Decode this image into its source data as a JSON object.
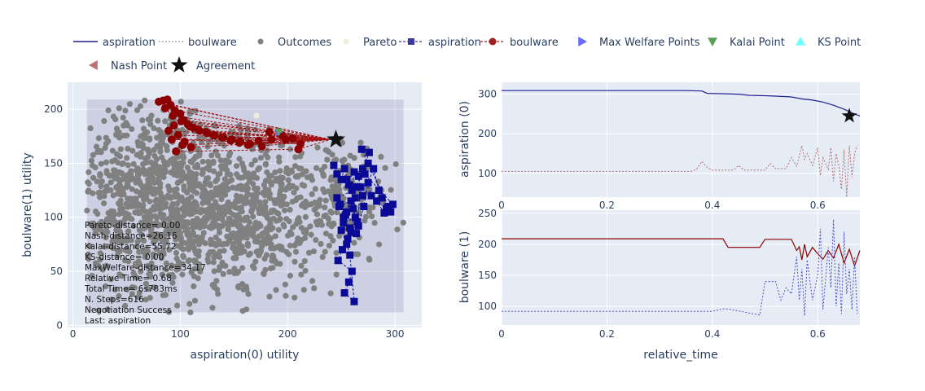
{
  "legend": [
    {
      "label": "aspiration",
      "kind": "solid-line",
      "color": "#1f1f8f"
    },
    {
      "label": "boulware",
      "kind": "dotted-line",
      "color": "#999999"
    },
    {
      "label": "Outcomes",
      "kind": "dot",
      "color": "#808080"
    },
    {
      "label": "Pareto",
      "kind": "dot",
      "color": "#f0f0d8"
    },
    {
      "label": "aspiration",
      "kind": "square-dash",
      "color": "#3a3aa0"
    },
    {
      "label": "boulware",
      "kind": "circle-dash",
      "color": "#a02020"
    },
    {
      "label": "Max Welfare Points",
      "kind": "triangle-right",
      "color": "#6a6aff"
    },
    {
      "label": "Kalai Point",
      "kind": "triangle-down",
      "color": "#5aa05a"
    },
    {
      "label": "KS Point",
      "kind": "triangle-up",
      "color": "#70ffff"
    },
    {
      "label": "Nash Point",
      "kind": "triangle-left",
      "color": "#c07070"
    },
    {
      "label": "Agreement",
      "kind": "star",
      "color": "#111111"
    }
  ],
  "annotations": [
    "Pareto-distance= 0.00",
    "Nash-distance=26.16",
    "Kalai-distance=55.72",
    "KS-distance= 0.00",
    "MaxWelfare-distance=34.17",
    "Relative Time= 0.68",
    "Total Time= 6s783ms",
    "N. Steps=616",
    "Negotiation Success",
    "Last: aspiration"
  ],
  "chart_data": [
    {
      "type": "scatter",
      "xlabel": "aspiration(0) utility",
      "ylabel": "boulware(1) utility",
      "xlim": [
        -5,
        325
      ],
      "ylim": [
        -2,
        225
      ],
      "x_ticks": [
        0,
        100,
        200,
        300
      ],
      "y_ticks": [
        0,
        50,
        100,
        150,
        200
      ],
      "outcome_region": {
        "x": [
          13,
          308
        ],
        "y": [
          12,
          209
        ]
      },
      "outcome_clusters": [
        {
          "cx": 80,
          "cy": 120,
          "sx": 45,
          "sy": 45,
          "n": 1050
        },
        {
          "cx": 170,
          "cy": 105,
          "sx": 38,
          "sy": 35,
          "n": 550
        },
        {
          "cx": 255,
          "cy": 120,
          "sx": 18,
          "sy": 25,
          "n": 140
        }
      ],
      "pareto": [
        {
          "x": 243,
          "y": 173
        },
        {
          "x": 192,
          "y": 179
        },
        {
          "x": 171,
          "y": 194
        }
      ],
      "aspiration_offers": {
        "x": [
          243,
          246,
          250,
          253,
          257,
          260,
          262,
          266,
          270,
          248,
          255,
          259,
          263,
          252,
          258,
          264,
          268,
          246,
          249,
          254,
          261,
          265,
          256,
          251,
          247,
          260,
          257,
          253,
          262,
          258,
          255,
          250,
          266,
          271,
          275,
          280,
          285,
          288,
          292,
          296,
          298,
          272,
          278,
          283,
          290,
          294,
          269,
          276,
          264,
          252,
          259,
          263,
          255,
          270,
          275
        ],
        "y": [
          148,
          140,
          135,
          145,
          130,
          125,
          142,
          138,
          120,
          110,
          105,
          115,
          100,
          95,
          90,
          85,
          128,
          118,
          112,
          102,
          108,
          96,
          80,
          70,
          60,
          50,
          40,
          30,
          22,
          65,
          75,
          88,
          92,
          110,
          132,
          145,
          125,
          118,
          108,
          105,
          112,
          140,
          120,
          115,
          104,
          110,
          163,
          160,
          128,
          100,
          86,
          118,
          135,
          145,
          150
        ]
      },
      "boulware_offers": {
        "x": [
          84,
          88,
          91,
          95,
          100,
          103,
          107,
          112,
          118,
          125,
          132,
          140,
          148,
          156,
          165,
          176,
          185,
          195,
          205,
          212,
          92,
          98,
          104,
          110,
          80,
          86,
          93,
          101,
          109,
          117,
          124,
          131,
          139,
          147,
          155,
          163,
          173,
          183,
          198,
          210,
          96,
          102,
          89,
          94
        ],
        "y": [
          208,
          209,
          204,
          199,
          196,
          190,
          186,
          183,
          180,
          178,
          176,
          174,
          172,
          170,
          168,
          166,
          172,
          176,
          173,
          168,
          172,
          176,
          170,
          165,
          207,
          201,
          194,
          189,
          184,
          181,
          179,
          176,
          174,
          171,
          169,
          167,
          171,
          179,
          172,
          163,
          161,
          167,
          180,
          185
        ]
      },
      "max_welfare": {
        "x": 192,
        "y": 179
      },
      "kalai": {
        "x": 192,
        "y": 179
      },
      "ks": {
        "x": 243,
        "y": 173
      },
      "nash": {
        "x": 243,
        "y": 173
      },
      "agreement": {
        "x": 245,
        "y": 172
      }
    },
    {
      "type": "line",
      "xlabel": "",
      "ylabel": "aspiration (0)",
      "xlim": [
        0,
        0.68
      ],
      "ylim": [
        40,
        330
      ],
      "x_ticks": [
        0,
        0.2,
        0.4,
        0.6
      ],
      "y_ticks": [
        100,
        200,
        300
      ],
      "series": [
        {
          "name": "aspiration",
          "style": "solid",
          "color": "#1f1f8f",
          "x": [
            0,
            0.1,
            0.2,
            0.3,
            0.35,
            0.38,
            0.39,
            0.45,
            0.47,
            0.5,
            0.52,
            0.55,
            0.57,
            0.59,
            0.61,
            0.63,
            0.65,
            0.67,
            0.68
          ],
          "y": [
            309,
            309,
            309,
            309,
            309,
            308,
            302,
            300,
            297,
            296,
            295,
            293,
            288,
            285,
            280,
            272,
            262,
            250,
            245
          ]
        },
        {
          "name": "boulware",
          "style": "dotted",
          "color": "#b07070",
          "x": [
            0,
            0.1,
            0.2,
            0.3,
            0.36,
            0.37,
            0.38,
            0.39,
            0.4,
            0.44,
            0.45,
            0.46,
            0.5,
            0.51,
            0.52,
            0.54,
            0.55,
            0.56,
            0.57,
            0.575,
            0.58,
            0.59,
            0.6,
            0.605,
            0.61,
            0.62,
            0.625,
            0.63,
            0.635,
            0.64,
            0.645,
            0.65,
            0.655,
            0.66,
            0.665,
            0.67,
            0.675
          ],
          "y": [
            105,
            105,
            105,
            105,
            105,
            110,
            130,
            115,
            108,
            108,
            120,
            108,
            108,
            125,
            112,
            112,
            140,
            118,
            170,
            135,
            150,
            120,
            165,
            95,
            140,
            110,
            165,
            80,
            150,
            120,
            60,
            160,
            40,
            170,
            90,
            150,
            170
          ]
        }
      ],
      "agreement": {
        "x": 0.66,
        "y": 245
      }
    },
    {
      "type": "line",
      "xlabel": "relative_time",
      "ylabel": "boulware (1)",
      "xlim": [
        0,
        0.68
      ],
      "ylim": [
        70,
        255
      ],
      "x_ticks": [
        0,
        0.2,
        0.4,
        0.6
      ],
      "y_ticks": [
        100,
        150,
        200,
        250
      ],
      "series": [
        {
          "name": "boulware",
          "style": "solid",
          "color": "#8b0000",
          "x": [
            0,
            0.1,
            0.2,
            0.3,
            0.4,
            0.42,
            0.43,
            0.49,
            0.5,
            0.55,
            0.56,
            0.565,
            0.57,
            0.575,
            0.58,
            0.59,
            0.6,
            0.61,
            0.62,
            0.63,
            0.64,
            0.65,
            0.66,
            0.67,
            0.68
          ],
          "y": [
            209,
            209,
            209,
            209,
            209,
            209,
            195,
            195,
            208,
            208,
            190,
            196,
            175,
            200,
            180,
            195,
            185,
            176,
            190,
            178,
            200,
            170,
            192,
            165,
            190
          ]
        },
        {
          "name": "aspiration",
          "style": "dotted",
          "color": "#5050c8",
          "x": [
            0,
            0.1,
            0.2,
            0.3,
            0.4,
            0.42,
            0.43,
            0.49,
            0.5,
            0.52,
            0.53,
            0.54,
            0.55,
            0.56,
            0.565,
            0.57,
            0.575,
            0.58,
            0.59,
            0.6,
            0.605,
            0.61,
            0.62,
            0.625,
            0.63,
            0.635,
            0.64,
            0.645,
            0.65,
            0.655,
            0.66,
            0.665,
            0.67,
            0.675
          ],
          "y": [
            92,
            92,
            92,
            92,
            92,
            96,
            96,
            86,
            140,
            140,
            110,
            130,
            120,
            180,
            110,
            160,
            85,
            175,
            110,
            150,
            225,
            95,
            195,
            130,
            240,
            100,
            170,
            88,
            220,
            120,
            160,
            95,
            180,
            88
          ]
        }
      ]
    }
  ]
}
